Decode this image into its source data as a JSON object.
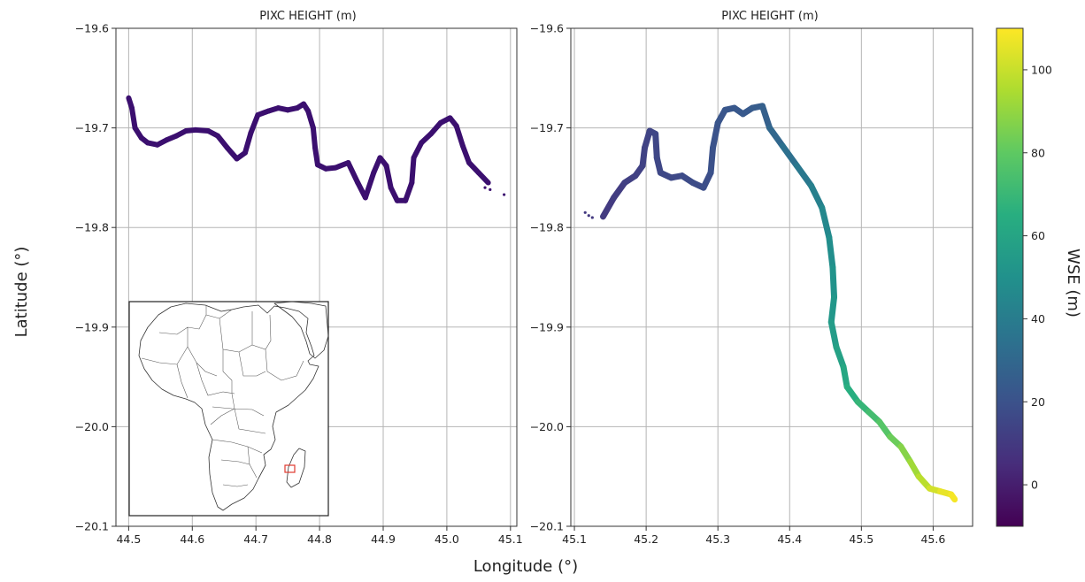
{
  "figure": {
    "shared_xlabel": "Longitude (°)",
    "shared_ylabel": "Latitude (°)"
  },
  "chart_data": [
    {
      "type": "scatter",
      "title": "PIXC HEIGHT (m)",
      "xlabel": "Longitude (°)",
      "ylabel": "Latitude (°)",
      "xlim": [
        44.48,
        45.11
      ],
      "ylim": [
        -20.1,
        -19.6
      ],
      "xticks": [
        44.5,
        44.6,
        44.7,
        44.8,
        44.9,
        45.0,
        45.1
      ],
      "xtick_labels": [
        "44.5",
        "44.6",
        "44.7",
        "44.8",
        "44.9",
        "45.0",
        "45.1"
      ],
      "yticks": [
        -19.6,
        -19.7,
        -19.8,
        -19.9,
        -20.0,
        -20.1
      ],
      "ytick_labels": [
        "−19.6",
        "−19.7",
        "−19.8",
        "−19.9",
        "−20.0",
        "−20.1"
      ],
      "grid": true,
      "series": [
        {
          "color": "#3b0f6f",
          "points": [
            [
              44.5,
              -19.67
            ],
            [
              44.505,
              -19.68
            ],
            [
              44.51,
              -19.7
            ],
            [
              44.52,
              -19.71
            ],
            [
              44.53,
              -19.715
            ],
            [
              44.545,
              -19.717
            ],
            [
              44.56,
              -19.712
            ],
            [
              44.575,
              -19.708
            ],
            [
              44.59,
              -19.703
            ],
            [
              44.605,
              -19.702
            ],
            [
              44.625,
              -19.703
            ],
            [
              44.64,
              -19.708
            ],
            [
              44.655,
              -19.72
            ],
            [
              44.67,
              -19.731
            ],
            [
              44.683,
              -19.725
            ],
            [
              44.692,
              -19.705
            ],
            [
              44.703,
              -19.687
            ],
            [
              44.72,
              -19.683
            ],
            [
              44.735,
              -19.68
            ],
            [
              44.75,
              -19.682
            ],
            [
              44.765,
              -19.68
            ],
            [
              44.775,
              -19.676
            ],
            [
              44.782,
              -19.683
            ],
            [
              44.79,
              -19.7
            ],
            [
              44.793,
              -19.72
            ],
            [
              44.797,
              -19.737
            ],
            [
              44.81,
              -19.741
            ],
            [
              44.825,
              -19.74
            ],
            [
              44.845,
              -19.735
            ],
            [
              44.86,
              -19.755
            ],
            [
              44.872,
              -19.77
            ],
            [
              44.885,
              -19.745
            ],
            [
              44.895,
              -19.73
            ],
            [
              44.905,
              -19.738
            ],
            [
              44.912,
              -19.76
            ],
            [
              44.922,
              -19.773
            ],
            [
              44.935,
              -19.773
            ],
            [
              44.945,
              -19.755
            ],
            [
              44.948,
              -19.73
            ],
            [
              44.96,
              -19.715
            ],
            [
              44.975,
              -19.706
            ],
            [
              44.99,
              -19.695
            ],
            [
              45.005,
              -19.69
            ],
            [
              45.015,
              -19.698
            ],
            [
              45.025,
              -19.718
            ],
            [
              45.035,
              -19.735
            ],
            [
              45.05,
              -19.745
            ],
            [
              45.065,
              -19.755
            ]
          ],
          "outliers": [
            [
              45.06,
              -19.76
            ],
            [
              45.068,
              -19.762
            ],
            [
              45.09,
              -19.767
            ],
            [
              44.52,
              -19.71
            ]
          ]
        }
      ]
    },
    {
      "type": "scatter",
      "title": "PIXC HEIGHT (m)",
      "xlabel": "Longitude (°)",
      "ylabel": "Latitude (°)",
      "xlim": [
        45.095,
        45.655
      ],
      "ylim": [
        -20.1,
        -19.6
      ],
      "xticks": [
        45.1,
        45.2,
        45.3,
        45.4,
        45.5,
        45.6
      ],
      "xtick_labels": [
        "45.1",
        "45.2",
        "45.3",
        "45.4",
        "45.5",
        "45.6"
      ],
      "yticks": [
        -19.6,
        -19.7,
        -19.8,
        -19.9,
        -20.0,
        -20.1
      ],
      "ytick_labels": [
        "−19.6",
        "−19.7",
        "−19.8",
        "−19.9",
        "−20.0",
        "−20.1"
      ],
      "grid": true,
      "color_variable": "WSE (m)",
      "series": [
        {
          "points": [
            [
              45.14,
              -19.789,
              10
            ],
            [
              45.155,
              -19.77,
              11
            ],
            [
              45.17,
              -19.755,
              12
            ],
            [
              45.185,
              -19.748,
              13
            ],
            [
              45.195,
              -19.738,
              13
            ],
            [
              45.198,
              -19.72,
              14
            ],
            [
              45.205,
              -19.703,
              14
            ],
            [
              45.213,
              -19.706,
              15
            ],
            [
              45.215,
              -19.73,
              15
            ],
            [
              45.22,
              -19.745,
              16
            ],
            [
              45.235,
              -19.75,
              16
            ],
            [
              45.25,
              -19.748,
              17
            ],
            [
              45.265,
              -19.755,
              17
            ],
            [
              45.28,
              -19.76,
              18
            ],
            [
              45.29,
              -19.745,
              19
            ],
            [
              45.293,
              -19.72,
              20
            ],
            [
              45.3,
              -19.695,
              21
            ],
            [
              45.31,
              -19.682,
              22
            ],
            [
              45.323,
              -19.68,
              23
            ],
            [
              45.335,
              -19.686,
              23
            ],
            [
              45.348,
              -19.68,
              24
            ],
            [
              45.362,
              -19.678,
              25
            ],
            [
              45.372,
              -19.7,
              28
            ],
            [
              45.39,
              -19.718,
              32
            ],
            [
              45.41,
              -19.738,
              36
            ],
            [
              45.43,
              -19.758,
              40
            ],
            [
              45.445,
              -19.78,
              44
            ],
            [
              45.455,
              -19.81,
              47
            ],
            [
              45.46,
              -19.84,
              50
            ],
            [
              45.462,
              -19.87,
              52
            ],
            [
              45.458,
              -19.895,
              54
            ],
            [
              45.465,
              -19.92,
              57
            ],
            [
              45.475,
              -19.94,
              60
            ],
            [
              45.48,
              -19.96,
              63
            ],
            [
              45.495,
              -19.975,
              67
            ],
            [
              45.51,
              -19.985,
              71
            ],
            [
              45.525,
              -19.995,
              75
            ],
            [
              45.54,
              -20.01,
              80
            ],
            [
              45.555,
              -20.02,
              85
            ],
            [
              45.568,
              -20.035,
              90
            ],
            [
              45.58,
              -20.05,
              95
            ],
            [
              45.595,
              -20.062,
              100
            ],
            [
              45.61,
              -20.065,
              104
            ],
            [
              45.625,
              -20.068,
              108
            ],
            [
              45.63,
              -20.073,
              109
            ]
          ],
          "outliers": [
            [
              45.115,
              -19.785,
              10
            ],
            [
              45.12,
              -19.788,
              10
            ],
            [
              45.125,
              -19.79,
              10
            ]
          ]
        }
      ]
    },
    {
      "type": "colorbar",
      "label": "WSE (m)",
      "colormap": "viridis",
      "range": [
        -10,
        110
      ],
      "ticks": [
        0,
        20,
        40,
        60,
        80,
        100
      ],
      "tick_labels": [
        "0",
        "20",
        "40",
        "60",
        "80",
        "100"
      ]
    }
  ],
  "inset": {
    "type": "map",
    "region": "Africa",
    "box_color": "#e03a2f"
  }
}
